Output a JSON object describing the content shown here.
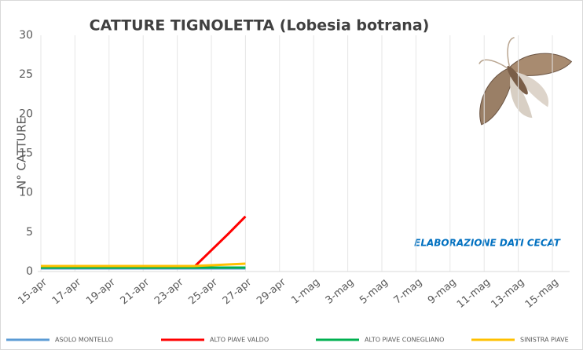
{
  "chart_data": {
    "type": "line",
    "title": "CATTURE TIGNOLETTA (Lobesia botrana)",
    "y_label": "N° CATTURE",
    "annotation": "ELABORAZIONE DATI CECAT",
    "categories": [
      "15-apr",
      null,
      "17-apr",
      null,
      "19-apr",
      null,
      "21-apr",
      null,
      "23-apr",
      null,
      "25-apr",
      null,
      "27-apr",
      null,
      "29-apr",
      null,
      "1-mag",
      null,
      "3-mag",
      null,
      "5-mag",
      null,
      "7-mag",
      null,
      "9-mag",
      null,
      "11-mag",
      null,
      "13-mag",
      null,
      "15-mag"
    ],
    "series": [
      {
        "name": "ASOLO MONTELLO",
        "color": "#5b9bd5",
        "values": [
          0.4,
          0.4,
          0.4,
          0.4,
          0.4,
          0.4,
          0.4,
          0.4,
          0.4,
          0.4,
          0.4,
          0.4,
          0.4,
          null,
          null,
          null,
          null,
          null,
          null,
          null,
          null,
          null,
          null,
          null,
          null,
          null,
          null,
          null,
          null,
          null,
          null
        ]
      },
      {
        "name": "ALTO PIAVE VALDO",
        "color": "#ff0000",
        "values": [
          0.6,
          0.6,
          0.6,
          0.6,
          0.6,
          0.6,
          0.6,
          0.6,
          0.6,
          0.6,
          2.7,
          4.8,
          7,
          null,
          null,
          null,
          null,
          null,
          null,
          null,
          null,
          null,
          null,
          null,
          null,
          null,
          null,
          null,
          null,
          null,
          null
        ]
      },
      {
        "name": "ALTO PIAVE CONEGLIANO",
        "color": "#00b050",
        "values": [
          0.5,
          0.5,
          0.5,
          0.5,
          0.5,
          0.5,
          0.5,
          0.5,
          0.5,
          0.5,
          0.5,
          0.5,
          0.5,
          null,
          null,
          null,
          null,
          null,
          null,
          null,
          null,
          null,
          null,
          null,
          null,
          null,
          null,
          null,
          null,
          null,
          null
        ]
      },
      {
        "name": "SINISTRA PIAVE",
        "color": "#ffc000",
        "values": [
          0.7,
          0.7,
          0.7,
          0.7,
          0.7,
          0.7,
          0.7,
          0.7,
          0.7,
          0.7,
          0.8,
          0.9,
          1.0,
          null,
          null,
          null,
          null,
          null,
          null,
          null,
          null,
          null,
          null,
          null,
          null,
          null,
          null,
          null,
          null,
          null,
          null
        ]
      }
    ],
    "ylim": [
      0,
      30
    ],
    "yticks": [
      0,
      5,
      10,
      15,
      20,
      25,
      30
    ],
    "grid": true
  }
}
